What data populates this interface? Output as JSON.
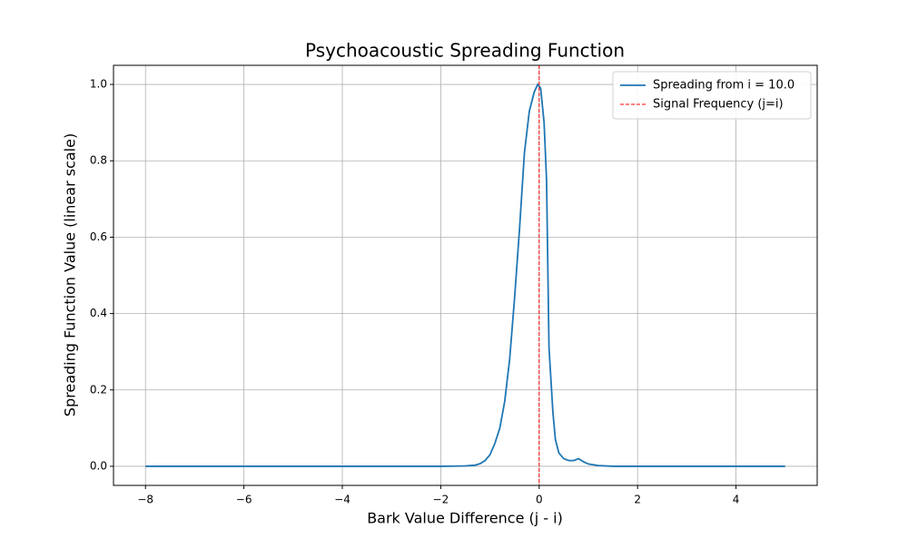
{
  "chart_data": {
    "type": "line",
    "title": "Psychoacoustic Spreading Function",
    "xlabel": "Bark Value Difference (j - i)",
    "ylabel": "Spreading Function Value (linear scale)",
    "series": [
      {
        "name": "Spreading from i = 10.0",
        "color": "#1f77b4",
        "x": [
          -8,
          -2,
          -1.5,
          -1.3,
          -1.2,
          -1.1,
          -1.0,
          -0.9,
          -0.8,
          -0.7,
          -0.6,
          -0.5,
          -0.4,
          -0.3,
          -0.2,
          -0.1,
          -0.03,
          0.03,
          0.1,
          0.15,
          0.2,
          0.28,
          0.33,
          0.4,
          0.5,
          0.6,
          0.7,
          0.8,
          0.9,
          1.0,
          1.2,
          1.5,
          5
        ],
        "values": [
          0,
          0,
          0.001,
          0.003,
          0.007,
          0.015,
          0.03,
          0.06,
          0.1,
          0.17,
          0.28,
          0.44,
          0.62,
          0.82,
          0.93,
          0.98,
          1.0,
          0.99,
          0.9,
          0.75,
          0.31,
          0.14,
          0.07,
          0.035,
          0.02,
          0.015,
          0.015,
          0.02,
          0.012,
          0.006,
          0.002,
          0,
          0
        ]
      }
    ],
    "vline": {
      "name": "Signal Frequency (j=i)",
      "x": 0,
      "color": "#ff0000"
    },
    "xlim": [
      -8.65,
      5.65
    ],
    "ylim": [
      -0.05,
      1.05
    ],
    "xticks": [
      {
        "value": -8,
        "label": "−8"
      },
      {
        "value": -6,
        "label": "−6"
      },
      {
        "value": -4,
        "label": "−4"
      },
      {
        "value": -2,
        "label": "−2"
      },
      0,
      2,
      4
    ],
    "yticks": [
      {
        "value": 0,
        "label": "0.0"
      },
      0.2,
      0.4,
      0.6,
      0.8,
      {
        "value": 1,
        "label": "1.0"
      }
    ],
    "grid": true,
    "legend": "upper right"
  }
}
